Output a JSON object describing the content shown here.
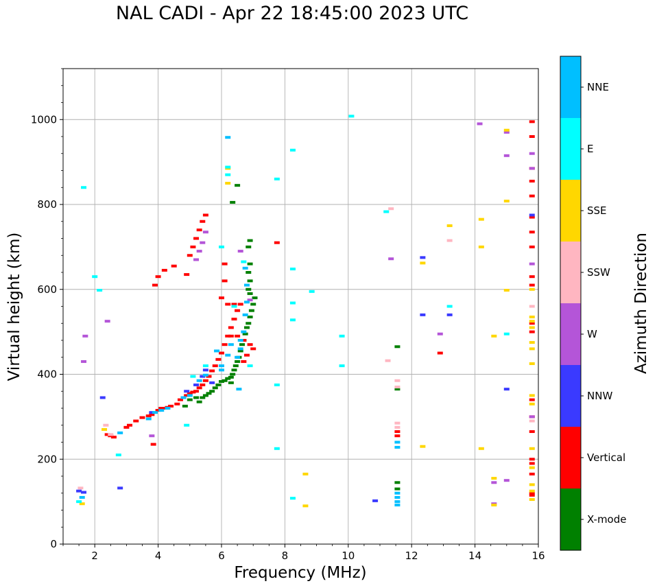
{
  "chart_data": {
    "type": "scatter",
    "title": "NAL CADI - Apr 22 18:45:00 2023 UTC",
    "xlabel": "Frequency (MHz)",
    "ylabel": "Virtual height (km)",
    "xlim": [
      1,
      16
    ],
    "ylim": [
      0,
      1120
    ],
    "xticks": [
      2,
      4,
      6,
      8,
      10,
      12,
      14,
      16
    ],
    "yticks": [
      0,
      200,
      400,
      600,
      800,
      1000
    ],
    "grid": true,
    "colorbar": {
      "label": "Azimuth Direction",
      "categories": [
        {
          "name": "X-mode",
          "color": "#008000"
        },
        {
          "name": "Vertical",
          "color": "#ff0000"
        },
        {
          "name": "NNW",
          "color": "#3a3aff"
        },
        {
          "name": "W",
          "color": "#b455d8"
        },
        {
          "name": "SSW",
          "color": "#ffb6c1"
        },
        {
          "name": "SSE",
          "color": "#ffd700"
        },
        {
          "name": "E",
          "color": "#00ffff"
        },
        {
          "name": "NNE",
          "color": "#00bfff"
        }
      ]
    },
    "series": [
      {
        "name": "X-mode",
        "points": [
          [
            4.85,
            325
          ],
          [
            5.0,
            340
          ],
          [
            5.2,
            345
          ],
          [
            5.3,
            335
          ],
          [
            5.4,
            345
          ],
          [
            5.5,
            350
          ],
          [
            5.6,
            355
          ],
          [
            5.7,
            360
          ],
          [
            5.8,
            368
          ],
          [
            5.9,
            375
          ],
          [
            6.0,
            383
          ],
          [
            6.1,
            385
          ],
          [
            6.2,
            390
          ],
          [
            6.3,
            393
          ],
          [
            6.35,
            400
          ],
          [
            6.4,
            410
          ],
          [
            6.45,
            420
          ],
          [
            6.5,
            430
          ],
          [
            6.55,
            440
          ],
          [
            6.6,
            455
          ],
          [
            6.65,
            470
          ],
          [
            6.7,
            480
          ],
          [
            6.75,
            495
          ],
          [
            6.8,
            510
          ],
          [
            6.85,
            520
          ],
          [
            6.9,
            535
          ],
          [
            6.95,
            550
          ],
          [
            7.0,
            565
          ],
          [
            7.05,
            580
          ],
          [
            6.9,
            590
          ],
          [
            6.85,
            600
          ],
          [
            6.9,
            620
          ],
          [
            6.85,
            640
          ],
          [
            6.9,
            660
          ],
          [
            6.85,
            700
          ],
          [
            6.9,
            715
          ],
          [
            6.5,
            845
          ],
          [
            6.35,
            805
          ],
          [
            11.55,
            465
          ],
          [
            11.55,
            365
          ],
          [
            11.55,
            145
          ],
          [
            11.55,
            130
          ],
          [
            6.3,
            380
          ]
        ]
      },
      {
        "name": "Vertical",
        "points": [
          [
            2.4,
            258
          ],
          [
            2.5,
            255
          ],
          [
            2.6,
            252
          ],
          [
            3.0,
            275
          ],
          [
            3.1,
            280
          ],
          [
            3.3,
            290
          ],
          [
            3.5,
            298
          ],
          [
            3.7,
            302
          ],
          [
            3.8,
            305
          ],
          [
            4.0,
            315
          ],
          [
            4.2,
            320
          ],
          [
            4.4,
            325
          ],
          [
            4.6,
            330
          ],
          [
            4.7,
            340
          ],
          [
            4.8,
            345
          ],
          [
            4.9,
            350
          ],
          [
            5.0,
            355
          ],
          [
            5.1,
            358
          ],
          [
            5.2,
            360
          ],
          [
            5.3,
            368
          ],
          [
            5.4,
            375
          ],
          [
            5.5,
            385
          ],
          [
            5.6,
            395
          ],
          [
            5.7,
            408
          ],
          [
            5.8,
            420
          ],
          [
            5.9,
            435
          ],
          [
            6.0,
            450
          ],
          [
            6.1,
            470
          ],
          [
            6.2,
            490
          ],
          [
            6.3,
            510
          ],
          [
            6.4,
            530
          ],
          [
            6.5,
            550
          ],
          [
            6.6,
            565
          ],
          [
            6.2,
            565
          ],
          [
            6.4,
            565
          ],
          [
            6.1,
            660
          ],
          [
            6.1,
            620
          ],
          [
            6.0,
            580
          ],
          [
            6.3,
            490
          ],
          [
            6.5,
            490
          ],
          [
            6.7,
            480
          ],
          [
            6.9,
            470
          ],
          [
            7.0,
            460
          ],
          [
            6.8,
            445
          ],
          [
            6.7,
            430
          ],
          [
            4.0,
            630
          ],
          [
            3.9,
            610
          ],
          [
            4.2,
            645
          ],
          [
            4.5,
            655
          ],
          [
            4.9,
            635
          ],
          [
            5.0,
            680
          ],
          [
            5.1,
            700
          ],
          [
            5.2,
            720
          ],
          [
            5.3,
            740
          ],
          [
            5.4,
            760
          ],
          [
            5.5,
            775
          ],
          [
            3.85,
            235
          ],
          [
            7.75,
            710
          ],
          [
            11.55,
            265
          ],
          [
            11.55,
            255
          ],
          [
            15.8,
            995
          ],
          [
            15.8,
            960
          ],
          [
            15.8,
            885
          ],
          [
            15.8,
            855
          ],
          [
            15.8,
            820
          ],
          [
            15.8,
            770
          ],
          [
            15.8,
            735
          ],
          [
            15.8,
            700
          ],
          [
            15.8,
            630
          ],
          [
            15.8,
            610
          ],
          [
            15.8,
            520
          ],
          [
            15.8,
            500
          ],
          [
            15.8,
            340
          ],
          [
            15.8,
            300
          ],
          [
            15.8,
            265
          ],
          [
            15.8,
            200
          ],
          [
            15.8,
            190
          ],
          [
            15.8,
            165
          ],
          [
            15.8,
            120
          ],
          [
            15.8,
            115
          ],
          [
            12.9,
            450
          ],
          [
            4.1,
            320
          ],
          [
            4.3,
            322
          ]
        ]
      },
      {
        "name": "NNW",
        "points": [
          [
            1.5,
            125
          ],
          [
            1.65,
            122
          ],
          [
            2.8,
            132
          ],
          [
            2.25,
            345
          ],
          [
            3.8,
            310
          ],
          [
            4.9,
            360
          ],
          [
            5.2,
            375
          ],
          [
            5.4,
            395
          ],
          [
            5.5,
            410
          ],
          [
            5.7,
            380
          ],
          [
            12.35,
            675
          ],
          [
            12.35,
            540
          ],
          [
            13.2,
            540
          ],
          [
            10.85,
            102
          ],
          [
            15.8,
            775
          ],
          [
            15.0,
            365
          ]
        ]
      },
      {
        "name": "W",
        "points": [
          [
            1.65,
            430
          ],
          [
            1.7,
            490
          ],
          [
            2.4,
            525
          ],
          [
            3.8,
            255
          ],
          [
            5.2,
            670
          ],
          [
            5.3,
            690
          ],
          [
            5.4,
            710
          ],
          [
            5.5,
            735
          ],
          [
            6.6,
            690
          ],
          [
            6.9,
            575
          ],
          [
            14.15,
            990
          ],
          [
            15.0,
            970
          ],
          [
            15.0,
            915
          ],
          [
            15.8,
            920
          ],
          [
            15.8,
            885
          ],
          [
            15.8,
            660
          ],
          [
            15.8,
            300
          ],
          [
            14.6,
            95
          ],
          [
            14.6,
            145
          ],
          [
            15.0,
            150
          ],
          [
            12.9,
            495
          ],
          [
            11.35,
            672
          ]
        ]
      },
      {
        "name": "SSW",
        "points": [
          [
            1.55,
            132
          ],
          [
            2.35,
            280
          ],
          [
            2.5,
            258
          ],
          [
            11.35,
            790
          ],
          [
            11.25,
            432
          ],
          [
            11.55,
            385
          ],
          [
            11.55,
            370
          ],
          [
            11.55,
            285
          ],
          [
            11.55,
            275
          ],
          [
            13.2,
            715
          ],
          [
            15.8,
            560
          ],
          [
            15.8,
            290
          ]
        ]
      },
      {
        "name": "SSE",
        "points": [
          [
            1.6,
            95
          ],
          [
            2.3,
            270
          ],
          [
            6.2,
            850
          ],
          [
            6.2,
            885
          ],
          [
            8.65,
            165
          ],
          [
            8.65,
            90
          ],
          [
            12.35,
            662
          ],
          [
            12.35,
            230
          ],
          [
            13.2,
            750
          ],
          [
            14.2,
            765
          ],
          [
            14.2,
            700
          ],
          [
            14.2,
            225
          ],
          [
            14.6,
            490
          ],
          [
            14.6,
            155
          ],
          [
            14.6,
            92
          ],
          [
            15.0,
            975
          ],
          [
            15.0,
            808
          ],
          [
            15.0,
            598
          ],
          [
            15.8,
            600
          ],
          [
            15.8,
            535
          ],
          [
            15.8,
            525
          ],
          [
            15.8,
            510
          ],
          [
            15.8,
            475
          ],
          [
            15.8,
            460
          ],
          [
            15.8,
            425
          ],
          [
            15.8,
            350
          ],
          [
            15.8,
            330
          ],
          [
            15.8,
            225
          ],
          [
            15.8,
            180
          ],
          [
            15.8,
            140
          ],
          [
            15.8,
            125
          ],
          [
            15.8,
            105
          ]
        ]
      },
      {
        "name": "E",
        "points": [
          [
            1.5,
            100
          ],
          [
            1.65,
            840
          ],
          [
            2.0,
            630
          ],
          [
            2.15,
            598
          ],
          [
            2.75,
            210
          ],
          [
            4.9,
            280
          ],
          [
            5.5,
            420
          ],
          [
            6.0,
            700
          ],
          [
            6.2,
            888
          ],
          [
            6.2,
            870
          ],
          [
            7.75,
            860
          ],
          [
            7.75,
            375
          ],
          [
            7.75,
            225
          ],
          [
            8.25,
            928
          ],
          [
            8.25,
            648
          ],
          [
            8.25,
            568
          ],
          [
            8.25,
            528
          ],
          [
            8.25,
            108
          ],
          [
            8.85,
            595
          ],
          [
            9.8,
            490
          ],
          [
            9.8,
            420
          ],
          [
            10.1,
            1008
          ],
          [
            11.2,
            783
          ],
          [
            13.2,
            560
          ],
          [
            15.0,
            495
          ],
          [
            6.7,
            665
          ],
          [
            6.4,
            560
          ],
          [
            6.9,
            420
          ],
          [
            5.1,
            395
          ]
        ]
      },
      {
        "name": "NNE",
        "points": [
          [
            1.6,
            110
          ],
          [
            2.8,
            262
          ],
          [
            3.7,
            295
          ],
          [
            3.9,
            310
          ],
          [
            4.1,
            315
          ],
          [
            4.3,
            320
          ],
          [
            4.8,
            345
          ],
          [
            5.0,
            350
          ],
          [
            5.3,
            385
          ],
          [
            5.5,
            398
          ],
          [
            6.0,
            420
          ],
          [
            6.2,
            445
          ],
          [
            6.3,
            470
          ],
          [
            6.5,
            440
          ],
          [
            6.6,
            460
          ],
          [
            6.7,
            500
          ],
          [
            6.75,
            540
          ],
          [
            6.8,
            570
          ],
          [
            6.8,
            610
          ],
          [
            6.75,
            650
          ],
          [
            6.6,
            480
          ],
          [
            6.55,
            365
          ],
          [
            6.2,
            958
          ],
          [
            11.55,
            240
          ],
          [
            11.55,
            228
          ],
          [
            11.55,
            120
          ],
          [
            11.55,
            110
          ],
          [
            11.55,
            100
          ],
          [
            11.55,
            92
          ],
          [
            6.0,
            410
          ],
          [
            5.85,
            455
          ]
        ]
      }
    ]
  }
}
